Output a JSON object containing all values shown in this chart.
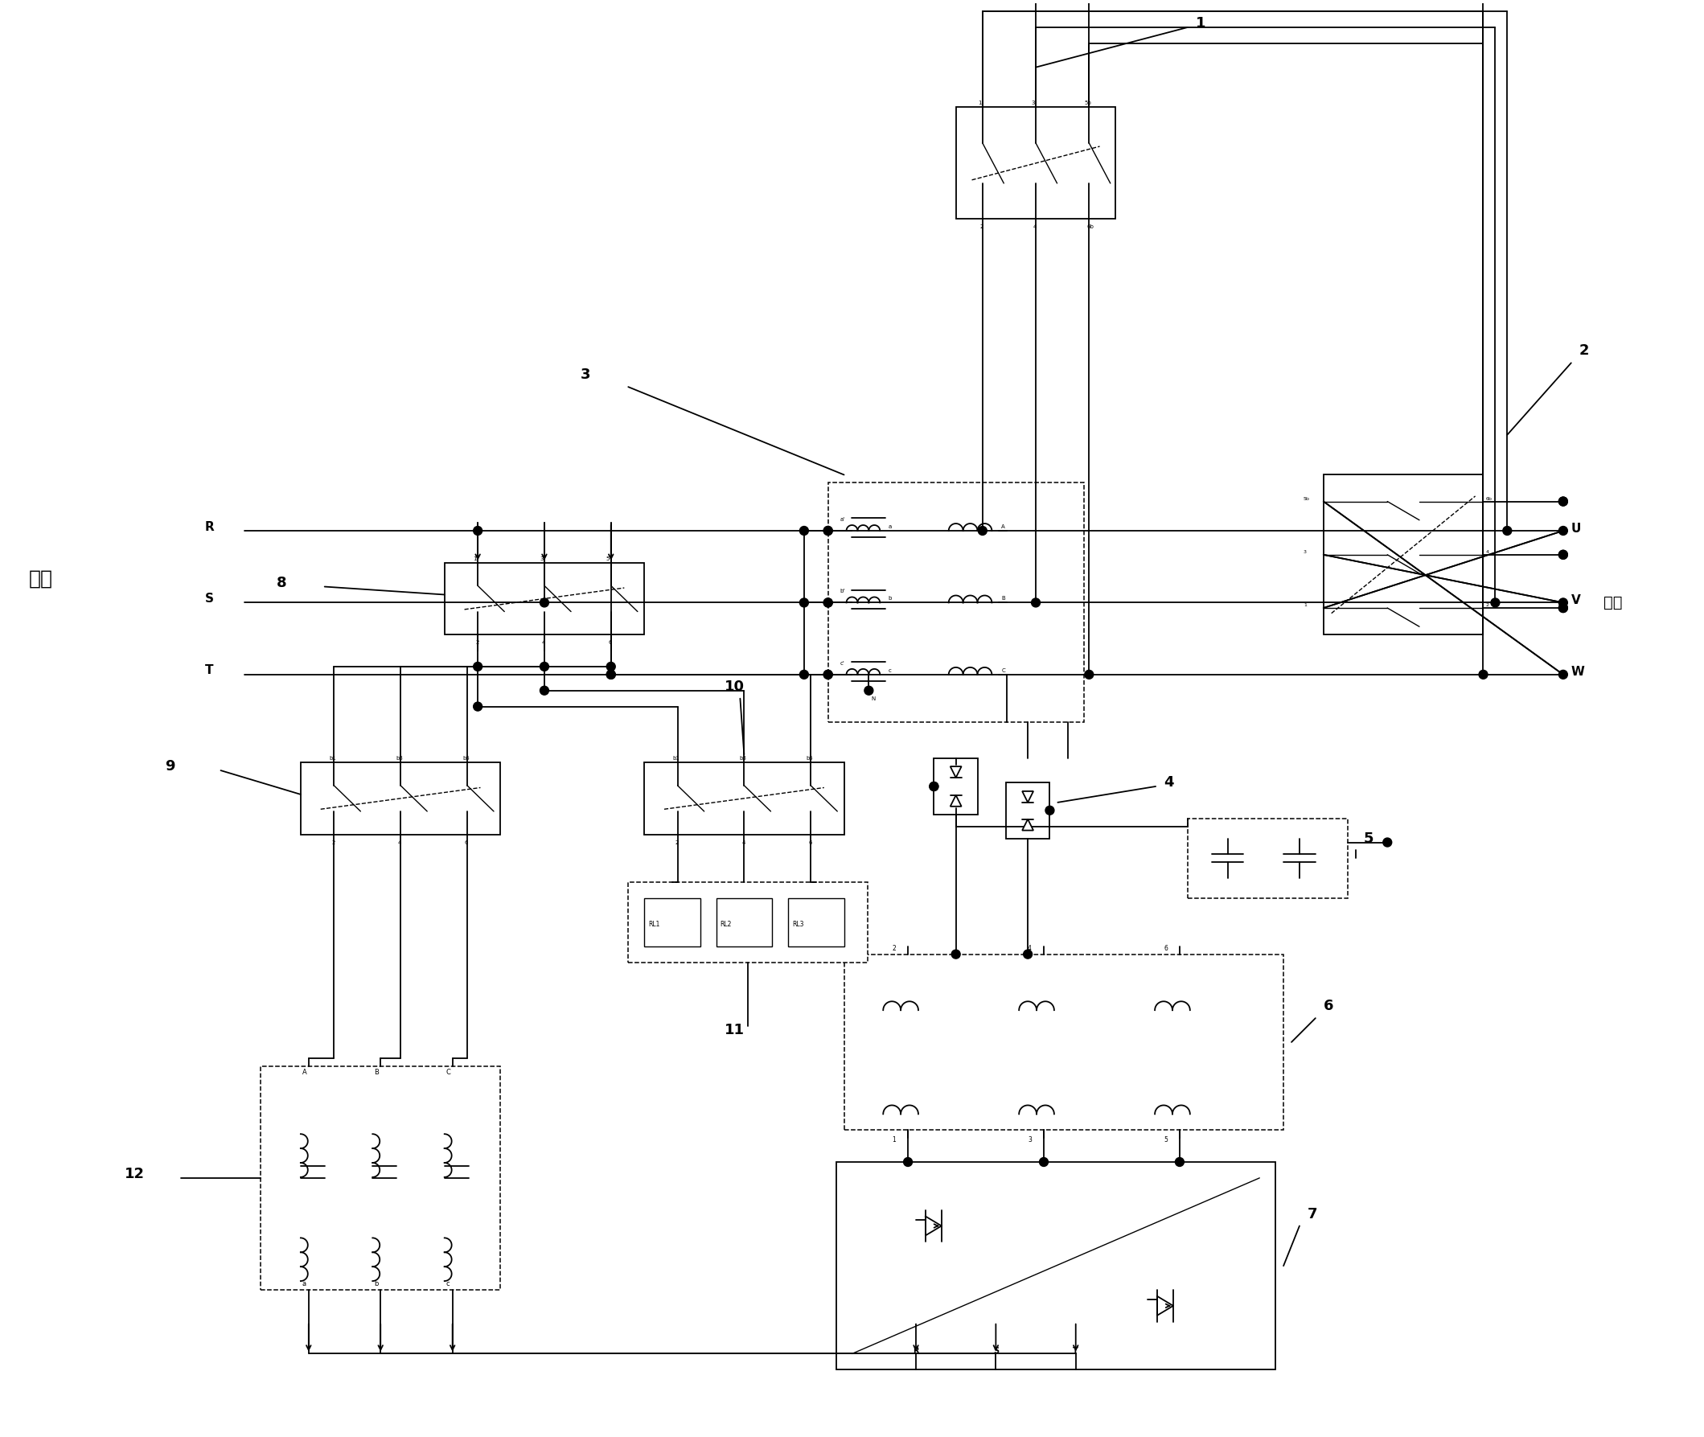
{
  "bg_color": "#ffffff",
  "line_color": "#000000",
  "fig_width": 21.19,
  "fig_height": 17.87,
  "labels": {
    "grid_left": "电网",
    "grid_R": "R",
    "grid_S": "S",
    "grid_T": "T",
    "output_U": "U",
    "output_V": "V",
    "output_W": "W",
    "output_label": "输出",
    "num1": "1",
    "num2": "2",
    "num3": "3",
    "num4": "4",
    "num5": "5",
    "num6": "6",
    "num7": "7",
    "num8": "8",
    "num9": "9",
    "num10": "10",
    "num11": "11",
    "num12": "12"
  }
}
